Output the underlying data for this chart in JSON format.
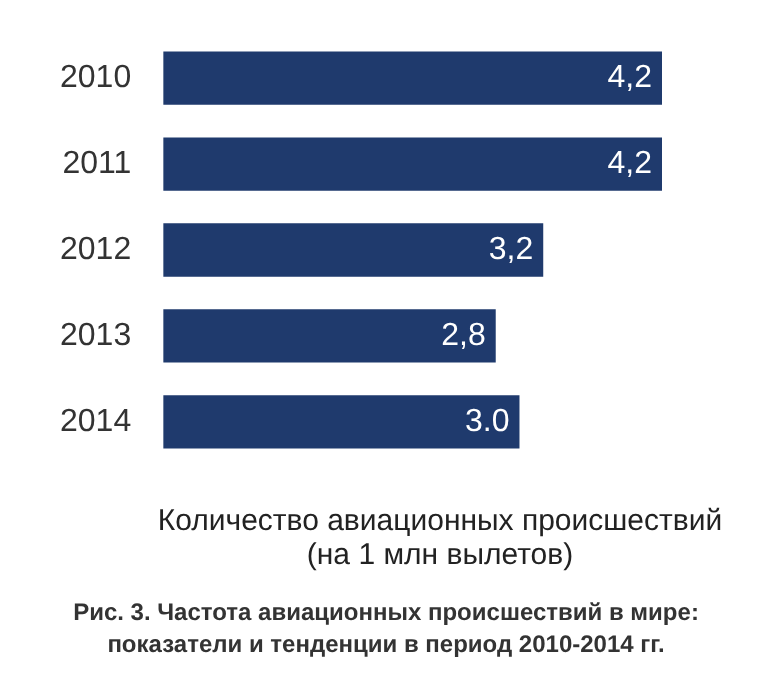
{
  "chart_data": {
    "type": "bar",
    "orientation": "horizontal",
    "title": "Рис. 3. Частота авиационных происшествий в мире: показатели и тенденции в период 2010-2014 гг.",
    "xlabel": "Количество авиационных происшествий (на 1 млн вылетов)",
    "categories": [
      "2010",
      "2011",
      "2012",
      "2013",
      "2014"
    ],
    "values": [
      4.2,
      4.2,
      3.2,
      2.8,
      3.0
    ],
    "value_labels": [
      "4,2",
      "4,2",
      "3,2",
      "2,8",
      "3.0"
    ],
    "color": "#1f3a6d"
  }
}
